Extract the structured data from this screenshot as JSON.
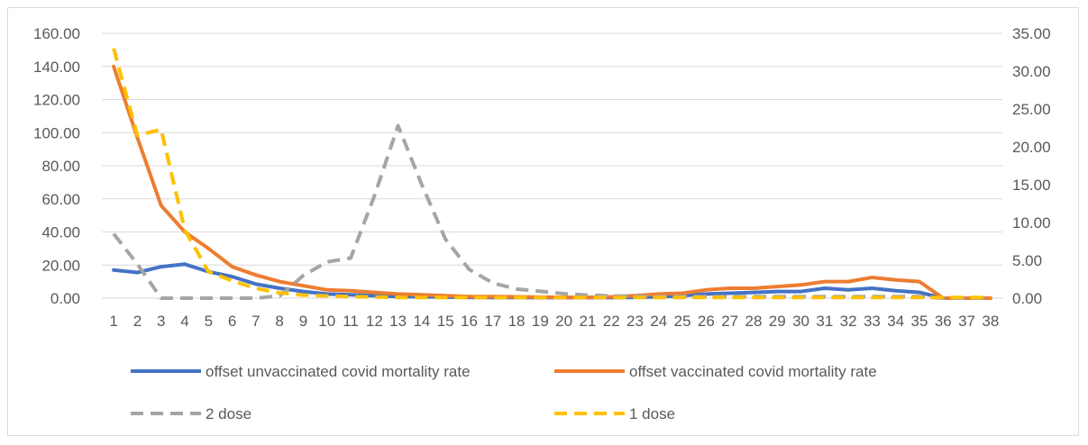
{
  "chart_data": {
    "type": "line",
    "title": "",
    "x": [
      1,
      2,
      3,
      4,
      5,
      6,
      7,
      8,
      9,
      10,
      11,
      12,
      13,
      14,
      15,
      16,
      17,
      18,
      19,
      20,
      21,
      22,
      23,
      24,
      25,
      26,
      27,
      28,
      29,
      30,
      31,
      32,
      33,
      34,
      35,
      36,
      37,
      38
    ],
    "y_left": {
      "ylim": [
        0,
        160
      ],
      "ticks": [
        "0.00",
        "20.00",
        "40.00",
        "60.00",
        "80.00",
        "100.00",
        "120.00",
        "140.00",
        "160.00"
      ]
    },
    "y_right": {
      "ylim": [
        0,
        35
      ],
      "ticks": [
        "0.00",
        "5.00",
        "10.00",
        "15.00",
        "20.00",
        "25.00",
        "30.00",
        "35.00"
      ]
    },
    "grid": true,
    "legend_position": "bottom",
    "series": [
      {
        "name": "offset unvaccinated covid mortality rate",
        "axis": "left",
        "style": "solid",
        "color": "#4472c4",
        "values": [
          17,
          15.5,
          19,
          20.5,
          16,
          13,
          8.5,
          6,
          4,
          2.5,
          2,
          1.5,
          1,
          0.8,
          0.6,
          0.5,
          0.4,
          0.4,
          0.3,
          0.3,
          0.3,
          0.3,
          0.5,
          0.8,
          1.5,
          2.5,
          3,
          3.5,
          4,
          4,
          6,
          5,
          6,
          4.5,
          3.5,
          0,
          0,
          0
        ]
      },
      {
        "name": "offset vaccinated covid mortality rate",
        "axis": "left",
        "style": "solid",
        "color": "#ed7d31",
        "values": [
          140,
          97,
          56,
          40,
          30,
          19,
          14,
          10,
          7.5,
          5,
          4.5,
          3.5,
          2.5,
          2,
          1.5,
          1,
          1,
          0.8,
          0.6,
          0.5,
          0.5,
          0.8,
          1.5,
          2.5,
          3,
          5,
          6,
          6,
          7,
          8,
          10,
          10,
          12.5,
          11,
          10,
          0,
          0,
          0
        ]
      },
      {
        "name": "2 dose",
        "axis": "right",
        "style": "dashed",
        "color": "#a5a5a5",
        "values": [
          8.5,
          4.5,
          0,
          0,
          0,
          0,
          0,
          0.3,
          3,
          4.8,
          5.3,
          13.5,
          22.8,
          15,
          7.8,
          3.8,
          2,
          1.2,
          0.9,
          0.6,
          0.4,
          0.3,
          0.25,
          0.2,
          0.2,
          0.2,
          0.2,
          0.2,
          0.2,
          0.2,
          0.2,
          0.2,
          0.2,
          0.2,
          0.2,
          0,
          0,
          0
        ]
      },
      {
        "name": "1 dose",
        "axis": "right",
        "style": "dashed",
        "color": "#ffc000",
        "values": [
          33,
          21.5,
          22.3,
          9,
          3.5,
          2.3,
          1.3,
          0.7,
          0.4,
          0.3,
          0.2,
          0.15,
          0.1,
          0.1,
          0.1,
          0.1,
          0.1,
          0.1,
          0.1,
          0.1,
          0.1,
          0.1,
          0.1,
          0.1,
          0.1,
          0.1,
          0.1,
          0.1,
          0.1,
          0.1,
          0.1,
          0.1,
          0.1,
          0.1,
          0.1,
          0.1,
          0.1,
          0.1
        ]
      }
    ]
  }
}
